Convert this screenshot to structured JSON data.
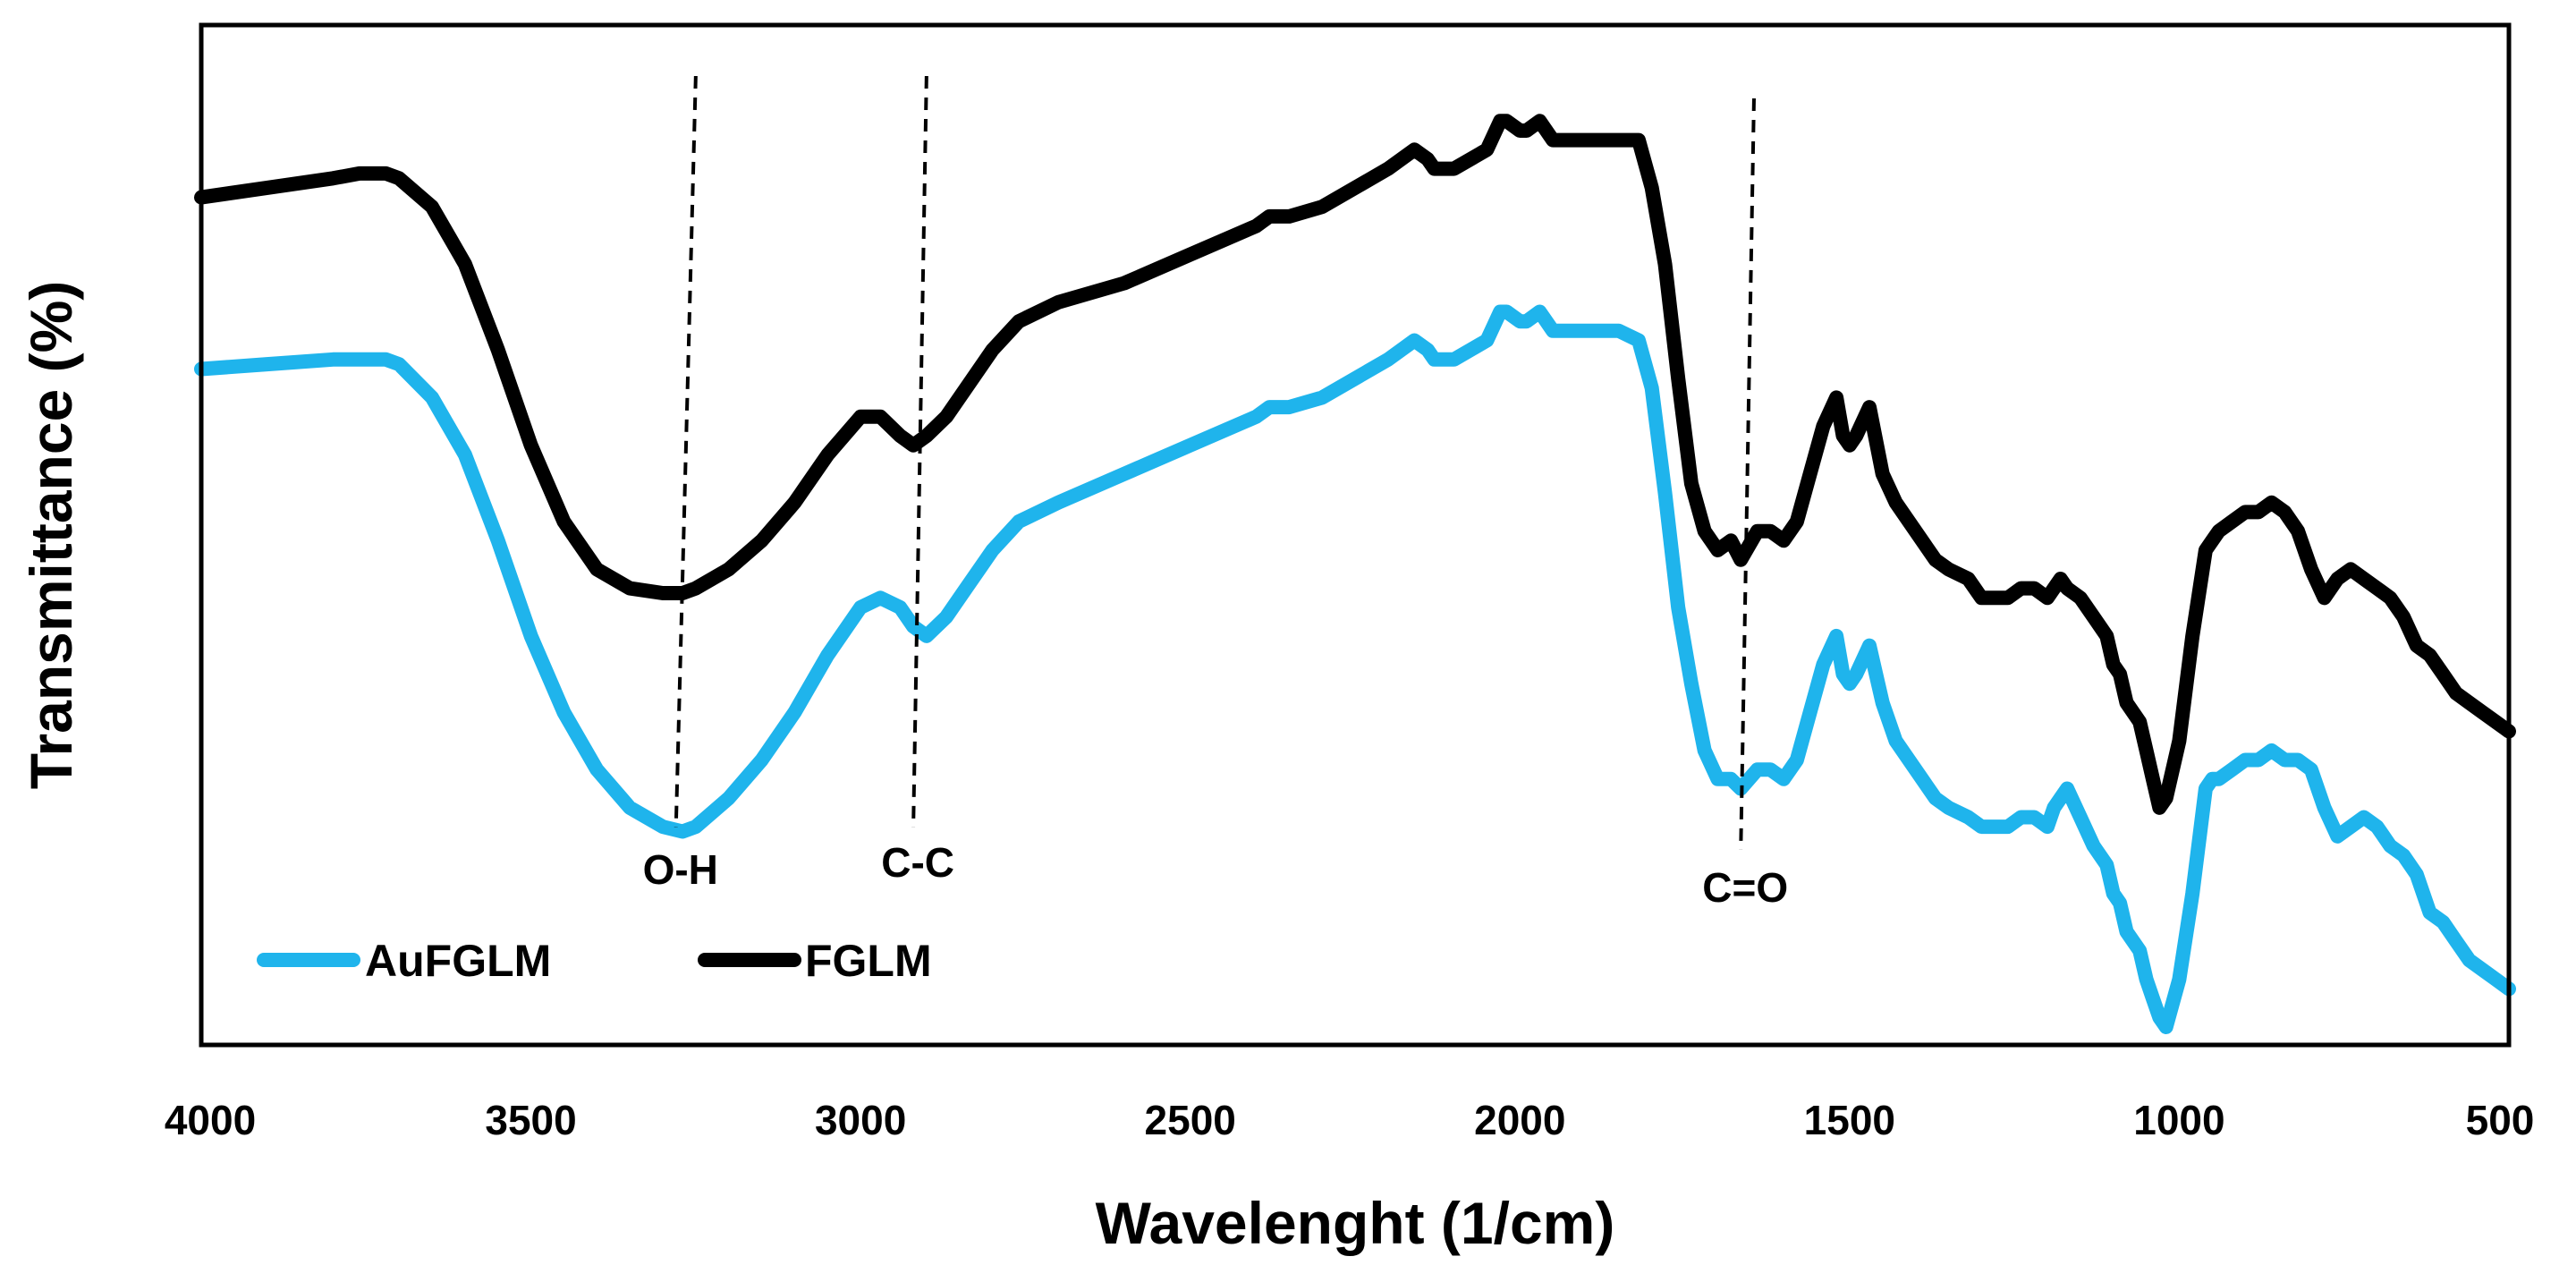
{
  "chart_data": {
    "type": "line",
    "title": "",
    "xlabel": "Wavelenght (1/cm)",
    "ylabel": "Transmittance (%)",
    "xlim": [
      4000,
      500
    ],
    "ylim": [
      0,
      100
    ],
    "x_reversed": true,
    "xticks": [
      "4000",
      "3500",
      "3000",
      "2500",
      "2000",
      "1500",
      "1000",
      "500"
    ],
    "xtick_values": [
      4000,
      3500,
      3000,
      2500,
      2000,
      1500,
      1000,
      500
    ],
    "grid": false,
    "legend_position": "bottom-left",
    "annotations": [
      {
        "label": "O-H",
        "x_top": 3250,
        "x_bottom": 3280
      },
      {
        "label": "C-C",
        "x_top": 2900,
        "x_bottom": 2920
      },
      {
        "label": "C=O",
        "x_top": 1645,
        "x_bottom": 1665
      }
    ],
    "series": [
      {
        "name": "AuFGLM",
        "color": "#1FB4EC",
        "x": [
          4000,
          3900,
          3800,
          3760,
          3720,
          3700,
          3650,
          3600,
          3550,
          3500,
          3450,
          3400,
          3350,
          3300,
          3270,
          3250,
          3200,
          3150,
          3100,
          3050,
          3000,
          2970,
          2940,
          2920,
          2900,
          2870,
          2840,
          2800,
          2760,
          2700,
          2600,
          2500,
          2400,
          2380,
          2350,
          2300,
          2200,
          2160,
          2140,
          2130,
          2100,
          2050,
          2030,
          2020,
          2000,
          1990,
          1970,
          1960,
          1950,
          1900,
          1850,
          1820,
          1800,
          1780,
          1760,
          1740,
          1720,
          1700,
          1680,
          1665,
          1640,
          1620,
          1600,
          1580,
          1560,
          1540,
          1520,
          1510,
          1500,
          1490,
          1470,
          1450,
          1430,
          1400,
          1370,
          1350,
          1320,
          1300,
          1280,
          1260,
          1240,
          1220,
          1200,
          1190,
          1180,
          1170,
          1150,
          1130,
          1110,
          1100,
          1090,
          1080,
          1060,
          1050,
          1040,
          1030,
          1020,
          1000,
          980,
          960,
          950,
          940,
          920,
          900,
          880,
          860,
          840,
          820,
          800,
          780,
          760,
          740,
          720,
          700,
          680,
          660,
          640,
          620,
          600,
          580,
          560,
          540,
          520,
          500
        ],
        "values": [
          69,
          69.5,
          70,
          70,
          70,
          69.5,
          66,
          60,
          51,
          41,
          33,
          27,
          23,
          21,
          20.5,
          21,
          24,
          28,
          33,
          39,
          44,
          45,
          44,
          42,
          41,
          43,
          46,
          50,
          53,
          55,
          58,
          61,
          64,
          65,
          65,
          66,
          70,
          72,
          71,
          70,
          70,
          72,
          75,
          75,
          74,
          74,
          75,
          74,
          73,
          73,
          73,
          72,
          67,
          56,
          44,
          36,
          29,
          26,
          26,
          25,
          27,
          27,
          26,
          28,
          33,
          38,
          41,
          37,
          36,
          37,
          40,
          34,
          30,
          27,
          24,
          23,
          22,
          21,
          21,
          21,
          22,
          22,
          21,
          23,
          24,
          25,
          22,
          19,
          17,
          14,
          13,
          10,
          8,
          5,
          3,
          1,
          0,
          5,
          14,
          25,
          26,
          26,
          27,
          28,
          28,
          29,
          28,
          28,
          27,
          23,
          20,
          21,
          22,
          21,
          19,
          18,
          16,
          12,
          11,
          9,
          7,
          6,
          5,
          4
        ]
      },
      {
        "name": "FGLM",
        "color": "#000000",
        "x": [
          4000,
          3900,
          3800,
          3760,
          3720,
          3700,
          3650,
          3600,
          3550,
          3500,
          3450,
          3400,
          3350,
          3300,
          3270,
          3250,
          3200,
          3150,
          3100,
          3050,
          3000,
          2970,
          2940,
          2920,
          2900,
          2870,
          2840,
          2800,
          2760,
          2700,
          2600,
          2500,
          2400,
          2380,
          2350,
          2300,
          2200,
          2160,
          2140,
          2130,
          2100,
          2050,
          2030,
          2020,
          2000,
          1990,
          1970,
          1960,
          1950,
          1900,
          1850,
          1820,
          1800,
          1780,
          1760,
          1740,
          1720,
          1700,
          1680,
          1665,
          1640,
          1620,
          1600,
          1580,
          1560,
          1540,
          1520,
          1510,
          1500,
          1490,
          1470,
          1450,
          1430,
          1400,
          1370,
          1350,
          1320,
          1300,
          1280,
          1260,
          1240,
          1220,
          1200,
          1190,
          1180,
          1170,
          1150,
          1130,
          1110,
          1100,
          1090,
          1080,
          1060,
          1050,
          1040,
          1030,
          1020,
          1000,
          980,
          960,
          950,
          940,
          920,
          900,
          880,
          860,
          840,
          820,
          800,
          780,
          760,
          740,
          720,
          700,
          680,
          660,
          640,
          620,
          600,
          580,
          560,
          540,
          520,
          500
        ],
        "values": [
          87,
          88,
          89,
          89.5,
          89.5,
          89,
          86,
          80,
          71,
          61,
          53,
          48,
          46,
          45.5,
          45.5,
          46,
          48,
          51,
          55,
          60,
          64,
          64,
          62,
          61,
          62,
          64,
          67,
          71,
          74,
          76,
          78,
          81,
          84,
          85,
          85,
          86,
          90,
          92,
          91,
          90,
          90,
          92,
          95,
          95,
          94,
          94,
          95,
          94,
          93,
          93,
          93,
          93,
          88,
          80,
          68,
          57,
          52,
          50,
          51,
          49,
          52,
          52,
          51,
          53,
          58,
          63,
          66,
          62,
          61,
          62,
          65,
          58,
          55,
          52,
          49,
          48,
          47,
          45,
          45,
          45,
          46,
          46,
          45,
          46,
          47,
          46,
          45,
          43,
          41,
          38,
          37,
          34,
          32,
          29,
          26,
          23,
          24,
          30,
          41,
          50,
          51,
          52,
          53,
          54,
          54,
          55,
          54,
          52,
          48,
          45,
          47,
          48,
          47,
          46,
          45,
          43,
          40,
          39,
          37,
          35,
          34,
          33,
          32,
          31
        ]
      }
    ]
  }
}
